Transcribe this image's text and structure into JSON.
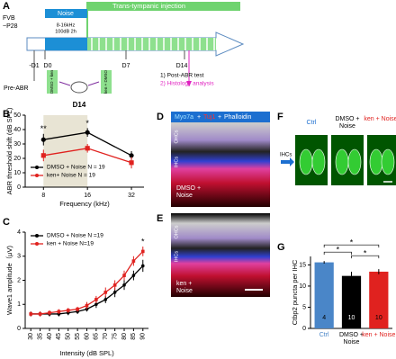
{
  "figure": {
    "panel_labels": [
      "A",
      "B",
      "C",
      "D",
      "E",
      "F",
      "G"
    ],
    "timeline": {
      "strain": "FVB",
      "age": "~P28",
      "noise": "Noise",
      "noise_band": "8-16kHz",
      "noise_level": "100dB 2h",
      "injection": "Trans-tympanic injection",
      "days": [
        "-D1",
        "D0",
        "D7",
        "D14"
      ],
      "pre": "Pre-ABR",
      "group1": "DMSO + ken",
      "group2": "ken + DMSO",
      "end_day": "D14",
      "step1": "1) Post-ABR test",
      "step2": "2) Histology analysis"
    },
    "images": {
      "stains": [
        "Myo7a",
        "Tuj1",
        "Phalloidin"
      ],
      "stain_sep": "+",
      "rows": [
        "OHCs",
        "IHCs"
      ],
      "d_group": "DMSO + Noise",
      "e_group": "ken + Noise",
      "f_labels": [
        "Ctrl",
        "DMSO + Noise",
        "ken + Noise"
      ],
      "f_row": "IHCs"
    }
  },
  "chart_data": [
    {
      "type": "line",
      "ylabel": "ABR threshold shift (dB SPL)",
      "xlabel": "Frequency (kHz)",
      "x": [
        8,
        16,
        32
      ],
      "xlim": [
        6,
        39
      ],
      "xscale": "log",
      "xticks": [
        8,
        16,
        32
      ],
      "ylim": [
        0,
        50
      ],
      "yticks": [
        0,
        10,
        20,
        30,
        40,
        50
      ],
      "shade": [
        8,
        16
      ],
      "legend": "lower-left",
      "series": [
        {
          "name": "DMSO + Noise  N = 19",
          "color": "#000000",
          "values": [
            33,
            38,
            22
          ],
          "errors": [
            4,
            3,
            3
          ]
        },
        {
          "name": "ken+ Noise  N = 19",
          "color": "#e0221f",
          "values": [
            22,
            27,
            17
          ],
          "errors": [
            4,
            3,
            4
          ]
        }
      ],
      "annotations": [
        {
          "text": "**",
          "x": 8
        },
        {
          "text": "*",
          "x": 16
        }
      ]
    },
    {
      "type": "line",
      "ylabel": "Wave1 amplitude（μV)",
      "xlabel": "Intensity (dB SPL)",
      "x": [
        30,
        35,
        40,
        45,
        50,
        55,
        60,
        65,
        70,
        75,
        80,
        85,
        90
      ],
      "xlim": [
        27,
        93
      ],
      "xticks": [
        30,
        35,
        40,
        45,
        50,
        55,
        60,
        65,
        70,
        75,
        80,
        85,
        90
      ],
      "ylim": [
        0,
        4
      ],
      "yticks": [
        0,
        1,
        2,
        3,
        4
      ],
      "legend": "upper-left",
      "series": [
        {
          "name": "DMSO + Noise N =19",
          "color": "#000000",
          "values": [
            0.6,
            0.6,
            0.6,
            0.6,
            0.65,
            0.7,
            0.8,
            1.0,
            1.2,
            1.5,
            1.8,
            2.2,
            2.6
          ],
          "errors": [
            0.1,
            0.1,
            0.1,
            0.1,
            0.1,
            0.1,
            0.1,
            0.15,
            0.15,
            0.2,
            0.2,
            0.2,
            0.25
          ]
        },
        {
          "name": "ken + Noise N=19",
          "color": "#e0221f",
          "values": [
            0.6,
            0.6,
            0.65,
            0.7,
            0.75,
            0.8,
            0.95,
            1.2,
            1.5,
            1.8,
            2.2,
            2.8,
            3.2
          ],
          "errors": [
            0.1,
            0.1,
            0.1,
            0.1,
            0.1,
            0.1,
            0.15,
            0.15,
            0.2,
            0.2,
            0.2,
            0.2,
            0.2
          ]
        }
      ],
      "annotations": [
        {
          "text": "*",
          "x": 90
        }
      ]
    },
    {
      "type": "bar",
      "ylabel": "Ctbp2 puncta per IHC",
      "categories": [
        "Ctrl",
        "DMSO + Noise",
        "ken + Noise"
      ],
      "values": [
        15.6,
        12.4,
        13.4
      ],
      "errors": [
        0.3,
        1.0,
        0.6
      ],
      "colors": [
        "#4a86c8",
        "#000000",
        "#e0221f"
      ],
      "n_labels": [
        "4",
        "10",
        "10"
      ],
      "ylim": [
        0,
        17
      ],
      "yticks": [
        0,
        5,
        10,
        15
      ],
      "comparisons": [
        {
          "pair": [
            0,
            1
          ],
          "label": "*"
        },
        {
          "pair": [
            0,
            2
          ],
          "label": "*"
        },
        {
          "pair": [
            1,
            2
          ],
          "label": "*"
        }
      ]
    }
  ]
}
